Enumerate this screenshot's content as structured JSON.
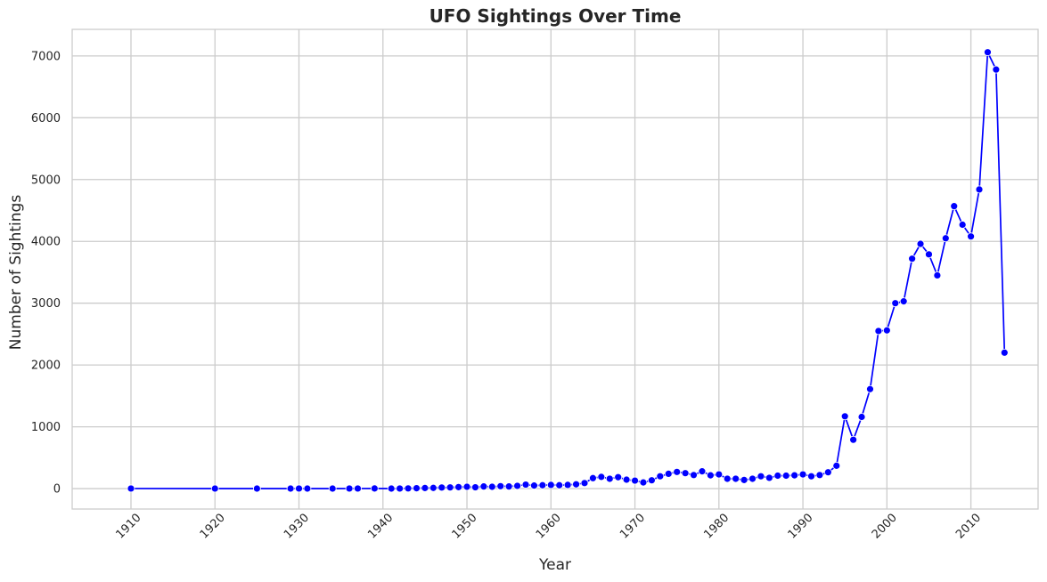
{
  "chart_data": {
    "type": "line",
    "title": "UFO Sightings Over Time",
    "xlabel": "Year",
    "ylabel": "Number of Sightings",
    "xlim": [
      1903,
      2018
    ],
    "ylim": [
      -330,
      7430
    ],
    "xticks": [
      "1910",
      "1920",
      "1930",
      "1940",
      "1950",
      "1960",
      "1970",
      "1980",
      "1990",
      "2000",
      "2010"
    ],
    "yticks": [
      "0",
      "1000",
      "2000",
      "3000",
      "4000",
      "5000",
      "6000",
      "7000"
    ],
    "grid": true,
    "line_color": "#0000ff",
    "grid_color": "#cccccc",
    "series": [
      {
        "x": [
          1910,
          1920,
          1925,
          1929,
          1930,
          1931,
          1934,
          1936,
          1937,
          1939,
          1941,
          1942,
          1943,
          1944,
          1945,
          1946,
          1947,
          1948,
          1949,
          1950,
          1951,
          1952,
          1953,
          1954,
          1955,
          1956,
          1957,
          1958,
          1959,
          1960,
          1961,
          1962,
          1963,
          1964,
          1965,
          1966,
          1967,
          1968,
          1969,
          1970,
          1971,
          1972,
          1973,
          1974,
          1975,
          1976,
          1977,
          1978,
          1979,
          1980,
          1981,
          1982,
          1983,
          1984,
          1985,
          1986,
          1987,
          1988,
          1989,
          1990,
          1991,
          1992,
          1993,
          1994,
          1995,
          1996,
          1997,
          1998,
          1999,
          2000,
          2001,
          2002,
          2003,
          2004,
          2005,
          2006,
          2007,
          2008,
          2009,
          2010,
          2011,
          2012,
          2013,
          2014
        ],
        "y": [
          2,
          1,
          1,
          1,
          2,
          1,
          1,
          2,
          2,
          3,
          1,
          2,
          4,
          7,
          10,
          12,
          18,
          20,
          25,
          30,
          22,
          35,
          30,
          40,
          35,
          45,
          65,
          50,
          55,
          60,
          55,
          60,
          70,
          90,
          170,
          190,
          160,
          185,
          145,
          130,
          100,
          135,
          200,
          240,
          270,
          250,
          220,
          280,
          215,
          230,
          160,
          160,
          140,
          160,
          200,
          175,
          210,
          210,
          215,
          230,
          200,
          220,
          265,
          370,
          1170,
          790,
          1160,
          1610,
          2550,
          2560,
          3000,
          3030,
          3720,
          3960,
          3790,
          3450,
          4050,
          4570,
          4270,
          4080,
          4840,
          7060,
          6780,
          2200
        ]
      }
    ]
  }
}
